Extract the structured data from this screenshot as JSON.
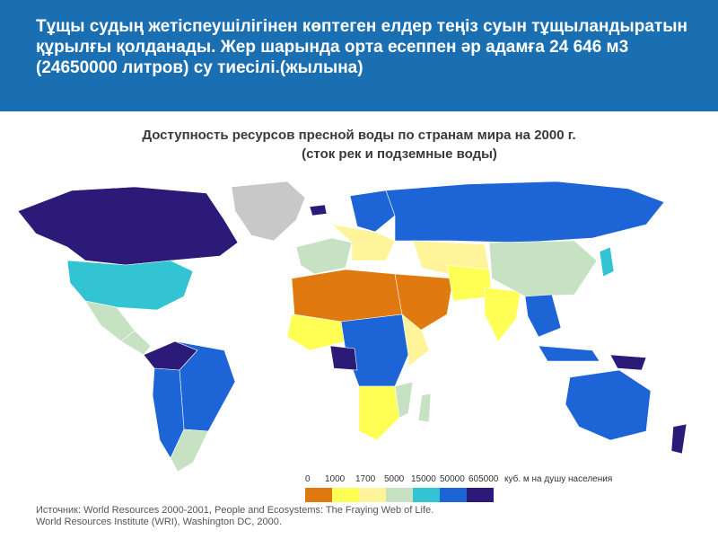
{
  "banner": {
    "text": "Тұщы судың жетіспеушілігінен көптеген елдер теңіз суын тұщыландыратын құрылғы қолданады. Жер шарында орта есеппен әр адамға  24 646 м3 (24650000 литров) су тиесілі.(жылына)"
  },
  "map": {
    "title_line1": "Доступность ресурсов пресной воды по странам мира на 2000 г.",
    "title_line2": "(сток рек и подземные воды)"
  },
  "legend": {
    "thresholds": [
      "0",
      "1000",
      "1700",
      "5000",
      "15000",
      "50000",
      "605000"
    ],
    "unit": "куб. м на душу населения",
    "colors": [
      "#e07a10",
      "#ffff55",
      "#fff49a",
      "#c7e2c3",
      "#33c4d4",
      "#1d64d6",
      "#2b1a78"
    ]
  },
  "colors": {
    "banner": "#1a6fb3",
    "nodata": "#c8c8c8",
    "darkest": "#2b1a78",
    "blue": "#1d64d6",
    "cyan": "#33c4d4",
    "pale": "#c7e2c3",
    "light_yellow": "#fff49a",
    "yellow": "#ffff55",
    "orange": "#e07a10"
  },
  "source": {
    "line1": "Источник: World Resources 2000-2001, People and Ecosystems: The Fraying Web of Life.",
    "line2": "World Resources Institute (WRI), Washington DC, 2000."
  }
}
